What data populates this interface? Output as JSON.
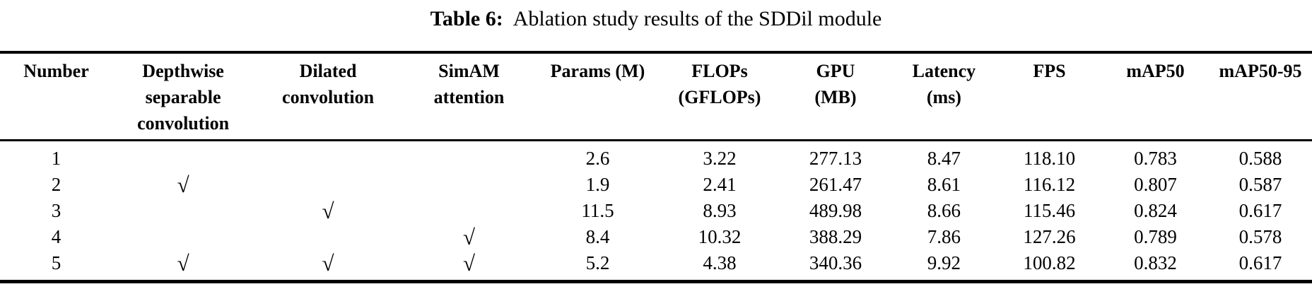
{
  "caption": {
    "label": "Table 6:",
    "text": "Ablation study results of the SDDil module"
  },
  "table": {
    "checkmark": "√",
    "columns": [
      {
        "key": "number",
        "lines": [
          "Number"
        ]
      },
      {
        "key": "dsc",
        "lines": [
          "Depthwise",
          "separable",
          "convolution"
        ]
      },
      {
        "key": "dilated",
        "lines": [
          "Dilated",
          "convolution"
        ]
      },
      {
        "key": "simam",
        "lines": [
          "SimAM",
          "attention"
        ]
      },
      {
        "key": "params",
        "lines": [
          "Params (M)"
        ]
      },
      {
        "key": "flops",
        "lines": [
          "FLOPs",
          "(GFLOPs)"
        ]
      },
      {
        "key": "gpu",
        "lines": [
          "GPU",
          "(MB)"
        ]
      },
      {
        "key": "latency",
        "lines": [
          "Latency",
          "(ms)"
        ]
      },
      {
        "key": "fps",
        "lines": [
          "FPS"
        ]
      },
      {
        "key": "map50",
        "lines": [
          "mAP50"
        ]
      },
      {
        "key": "map5095",
        "lines": [
          "mAP50-95"
        ]
      }
    ],
    "rows": [
      {
        "number": "1",
        "dsc": false,
        "dilated": false,
        "simam": false,
        "params": "2.6",
        "flops": "3.22",
        "gpu": "277.13",
        "latency": "8.47",
        "fps": "118.10",
        "map50": "0.783",
        "map5095": "0.588"
      },
      {
        "number": "2",
        "dsc": true,
        "dilated": false,
        "simam": false,
        "params": "1.9",
        "flops": "2.41",
        "gpu": "261.47",
        "latency": "8.61",
        "fps": "116.12",
        "map50": "0.807",
        "map5095": "0.587"
      },
      {
        "number": "3",
        "dsc": false,
        "dilated": true,
        "simam": false,
        "params": "11.5",
        "flops": "8.93",
        "gpu": "489.98",
        "latency": "8.66",
        "fps": "115.46",
        "map50": "0.824",
        "map5095": "0.617"
      },
      {
        "number": "4",
        "dsc": false,
        "dilated": false,
        "simam": true,
        "params": "8.4",
        "flops": "10.32",
        "gpu": "388.29",
        "latency": "7.86",
        "fps": "127.26",
        "map50": "0.789",
        "map5095": "0.578"
      },
      {
        "number": "5",
        "dsc": true,
        "dilated": true,
        "simam": true,
        "params": "5.2",
        "flops": "4.38",
        "gpu": "340.36",
        "latency": "9.92",
        "fps": "100.82",
        "map50": "0.832",
        "map5095": "0.617"
      }
    ]
  }
}
